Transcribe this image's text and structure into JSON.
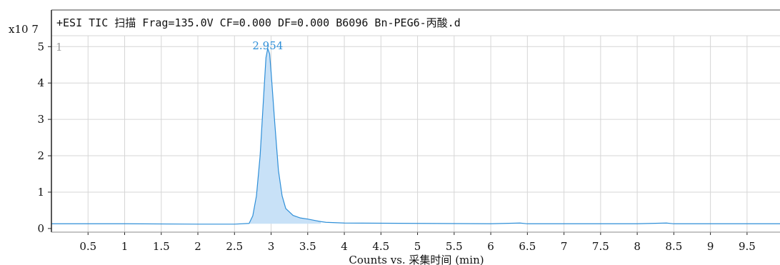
{
  "chart_data": {
    "type": "area",
    "title": "+ESI TIC 扫描 Frag=135.0V CF=0.000 DF=0.000 B6096 Bn-PEG6-丙酸.d",
    "xlabel": "Counts vs. 采集时间 (min)",
    "ylabel": "",
    "y_multiplier": "x10 7",
    "x_ticks": [
      "0.5",
      "1",
      "1.5",
      "2",
      "2.5",
      "3",
      "3.5",
      "4",
      "4.5",
      "5",
      "5.5",
      "6",
      "6.5",
      "7",
      "7.5",
      "8",
      "8.5",
      "9",
      "9.5"
    ],
    "y_ticks": [
      "0",
      "1",
      "2",
      "3",
      "4",
      "5"
    ],
    "xlim": [
      0.0,
      9.95
    ],
    "ylim": [
      -0.1,
      5.3
    ],
    "grid": true,
    "peak_label": "2.954",
    "peak_label_x": 2.954,
    "left_marker": "1",
    "series": [
      {
        "x": [
          0.0,
          1.0,
          2.0,
          2.5,
          2.7,
          2.75,
          2.8,
          2.85,
          2.9,
          2.93,
          2.954,
          2.98,
          3.0,
          3.05,
          3.1,
          3.15,
          3.2,
          3.3,
          3.4,
          3.5,
          3.6,
          3.68,
          3.75,
          4.0,
          5.0,
          6.0,
          6.4,
          6.5,
          7.0,
          8.0,
          8.4,
          8.5,
          9.0,
          9.95
        ],
        "y": [
          0.13,
          0.13,
          0.12,
          0.12,
          0.14,
          0.35,
          0.9,
          2.0,
          3.7,
          4.7,
          4.95,
          4.8,
          4.3,
          2.9,
          1.6,
          0.9,
          0.55,
          0.36,
          0.29,
          0.26,
          0.22,
          0.19,
          0.17,
          0.15,
          0.14,
          0.13,
          0.15,
          0.13,
          0.13,
          0.13,
          0.15,
          0.13,
          0.13,
          0.13
        ]
      }
    ],
    "shaded_range": [
      2.7,
      3.68
    ],
    "colors": {
      "line": "#2f8fd8",
      "fill": "#c8e1f7",
      "grid": "#d6d6d6",
      "axis": "#222222"
    }
  }
}
